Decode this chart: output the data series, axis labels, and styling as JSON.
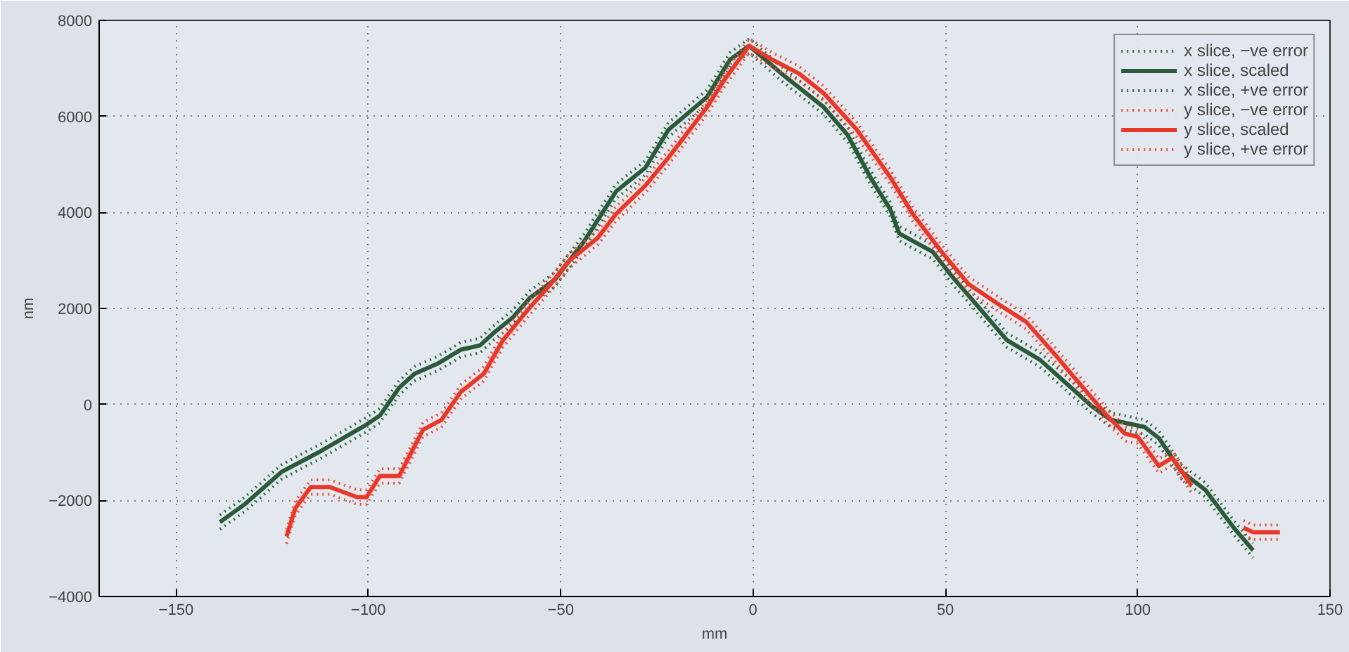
{
  "chart_data": {
    "type": "line",
    "xlabel": "mm",
    "ylabel": "nm",
    "xlim": [
      -170,
      150
    ],
    "ylim": [
      -4000,
      8000
    ],
    "xticks": [
      {
        "value": -150,
        "label": "−150"
      },
      {
        "value": -100,
        "label": "−100"
      },
      {
        "value": -50,
        "label": "−50"
      },
      0,
      50,
      100,
      150
    ],
    "yticks": [
      {
        "value": -4000,
        "label": "−4000"
      },
      {
        "value": -2000,
        "label": "−2000"
      },
      0,
      2000,
      4000,
      6000,
      8000
    ],
    "grid": true,
    "legend": "top right",
    "marker": "none",
    "series": [
      {
        "name": "x slice, −ve error",
        "color": "#2e6b40",
        "line_style": "dotted",
        "x": [
          -138.6,
          -132,
          -122.5,
          -113,
          -100.5,
          -97,
          -92,
          -88,
          -82,
          -76,
          -71,
          -67,
          -62.5,
          -58,
          -51.5,
          -44,
          -35.6,
          -28,
          -22,
          -12,
          -6,
          -1,
          7.4,
          18.4,
          24.6,
          30.5,
          35.7,
          38,
          46.7,
          51.5,
          58.8,
          66,
          74.6,
          81,
          88,
          93,
          101.8,
          105.5,
          111.4,
          117.6,
          125,
          130
        ],
        "values": [
          -2600,
          -2220,
          -1550,
          -1150,
          -570,
          -380,
          200,
          490,
          700,
          990,
          1080,
          1370,
          1660,
          2070,
          2450,
          3240,
          4290,
          4780,
          5570,
          6250,
          7030,
          7320,
          6740,
          6040,
          5460,
          4580,
          3910,
          3410,
          3030,
          2540,
          1860,
          1190,
          780,
          320,
          -180,
          -470,
          -620,
          -850,
          -1550,
          -1930,
          -2720,
          -3190
        ]
      },
      {
        "name": "x slice, scaled",
        "color": "#2a5a3a",
        "line_style": "solid",
        "x": [
          -138.6,
          -132,
          -122.5,
          -113,
          -100.5,
          -97,
          -92,
          -88,
          -82,
          -76,
          -71,
          -67,
          -62.5,
          -58,
          -51.5,
          -44,
          -35.6,
          -28,
          -22,
          -12,
          -6,
          -1,
          7.4,
          18.4,
          24.6,
          30.5,
          35.7,
          38,
          46.7,
          51.5,
          58.8,
          66,
          74.6,
          81,
          88,
          93,
          101.8,
          105.5,
          111.4,
          117.6,
          125,
          130
        ],
        "values": [
          -2450,
          -2070,
          -1400,
          -1000,
          -420,
          -230,
          350,
          640,
          850,
          1140,
          1230,
          1520,
          1810,
          2220,
          2600,
          3390,
          4440,
          4930,
          5720,
          6400,
          7180,
          7470,
          6890,
          6190,
          5610,
          4730,
          4060,
          3560,
          3180,
          2690,
          2010,
          1340,
          930,
          470,
          -30,
          -320,
          -470,
          -700,
          -1400,
          -1780,
          -2570,
          -3040
        ]
      },
      {
        "name": "x slice, +ve error",
        "color": "#2e6b40",
        "line_style": "dotted",
        "x": [
          -138.6,
          -132,
          -122.5,
          -113,
          -100.5,
          -97,
          -92,
          -88,
          -82,
          -76,
          -71,
          -67,
          -62.5,
          -58,
          -51.5,
          -44,
          -35.6,
          -28,
          -22,
          -12,
          -6,
          -1,
          7.4,
          18.4,
          24.6,
          30.5,
          35.7,
          38,
          46.7,
          51.5,
          58.8,
          66,
          74.6,
          81,
          88,
          93,
          101.8,
          105.5,
          111.4,
          117.6,
          125,
          130
        ],
        "values": [
          -2300,
          -1920,
          -1250,
          -850,
          -270,
          -80,
          500,
          790,
          1000,
          1290,
          1380,
          1670,
          1960,
          2370,
          2750,
          3540,
          4590,
          5080,
          5870,
          6550,
          7330,
          7620,
          7040,
          6340,
          5760,
          4880,
          4210,
          3710,
          3330,
          2840,
          2160,
          1490,
          1080,
          620,
          120,
          -170,
          -320,
          -550,
          -1250,
          -1630,
          -2420,
          -2890
        ]
      },
      {
        "name": "y slice, −ve error",
        "color": "#f04a3a",
        "line_style": "dotted",
        "x": [
          -121.3,
          -119,
          -115,
          -110,
          -103,
          -100.5,
          -97,
          -92,
          -85.8,
          -81,
          -76,
          -70,
          -65,
          -59,
          -52.6,
          -48,
          -40.4,
          -35.6,
          -28,
          -22,
          -12,
          -7.4,
          -1,
          5,
          12,
          18.4,
          27,
          35.7,
          41.5,
          49,
          56,
          63.6,
          71,
          78.4,
          84.5,
          92,
          96.7,
          100,
          105.5,
          109,
          114,
          120,
          127.5,
          130,
          137
        ],
        "values": [
          -2900,
          -2310,
          -1870,
          -1870,
          -2080,
          -2080,
          -1640,
          -1640,
          -675,
          -470,
          110,
          490,
          1190,
          1780,
          2360,
          2830,
          3320,
          3820,
          4410,
          4990,
          6040,
          6620,
          7320,
          7030,
          6740,
          6330,
          5570,
          4580,
          3820,
          3030,
          2360,
          1950,
          1570,
          900,
          320,
          -380,
          -760,
          -820,
          -1430,
          -1260,
          -1840,
          null,
          -2720,
          -2810,
          -2810
        ]
      },
      {
        "name": "y slice, scaled",
        "color": "#e8382a",
        "line_style": "solid",
        "x": [
          -121.3,
          -119,
          -115,
          -110,
          -103,
          -100.5,
          -97,
          -92,
          -85.8,
          -81,
          -76,
          -70,
          -65,
          -59,
          -52.6,
          -48,
          -40.4,
          -35.6,
          -28,
          -22,
          -12,
          -7.4,
          -1,
          5,
          12,
          18.4,
          27,
          35.7,
          41.5,
          49,
          56,
          63.6,
          71,
          78.4,
          84.5,
          92,
          96.7,
          100,
          105.5,
          109,
          114,
          120,
          127.5,
          130,
          137
        ],
        "values": [
          -2750,
          -2160,
          -1720,
          -1720,
          -1930,
          -1930,
          -1490,
          -1490,
          -525,
          -320,
          260,
          640,
          1340,
          1930,
          2510,
          2980,
          3470,
          3970,
          4560,
          5140,
          6190,
          6770,
          7470,
          7180,
          6890,
          6480,
          5720,
          4730,
          3970,
          3180,
          2510,
          2100,
          1720,
          1050,
          470,
          -230,
          -610,
          -670,
          -1280,
          -1110,
          -1690,
          null,
          -2570,
          -2660,
          -2660
        ]
      },
      {
        "name": "y slice, +ve error",
        "color": "#f04a3a",
        "line_style": "dotted",
        "x": [
          -121.3,
          -119,
          -115,
          -110,
          -103,
          -100.5,
          -97,
          -92,
          -85.8,
          -81,
          -76,
          -70,
          -65,
          -59,
          -52.6,
          -48,
          -40.4,
          -35.6,
          -28,
          -22,
          -12,
          -7.4,
          -1,
          5,
          12,
          18.4,
          27,
          35.7,
          41.5,
          49,
          56,
          63.6,
          71,
          78.4,
          84.5,
          92,
          96.7,
          100,
          105.5,
          109,
          114,
          120,
          127.5,
          130,
          137
        ],
        "values": [
          -2600,
          -2010,
          -1570,
          -1570,
          -1780,
          -1780,
          -1340,
          -1340,
          -375,
          -170,
          410,
          790,
          1490,
          2080,
          2660,
          3130,
          3620,
          4120,
          4710,
          5290,
          6340,
          6920,
          7620,
          7330,
          7040,
          6630,
          5870,
          4880,
          4120,
          3330,
          2660,
          2250,
          1870,
          1200,
          620,
          -80,
          -460,
          -520,
          -1130,
          -960,
          -1540,
          null,
          -2420,
          -2510,
          -2510
        ]
      }
    ]
  }
}
